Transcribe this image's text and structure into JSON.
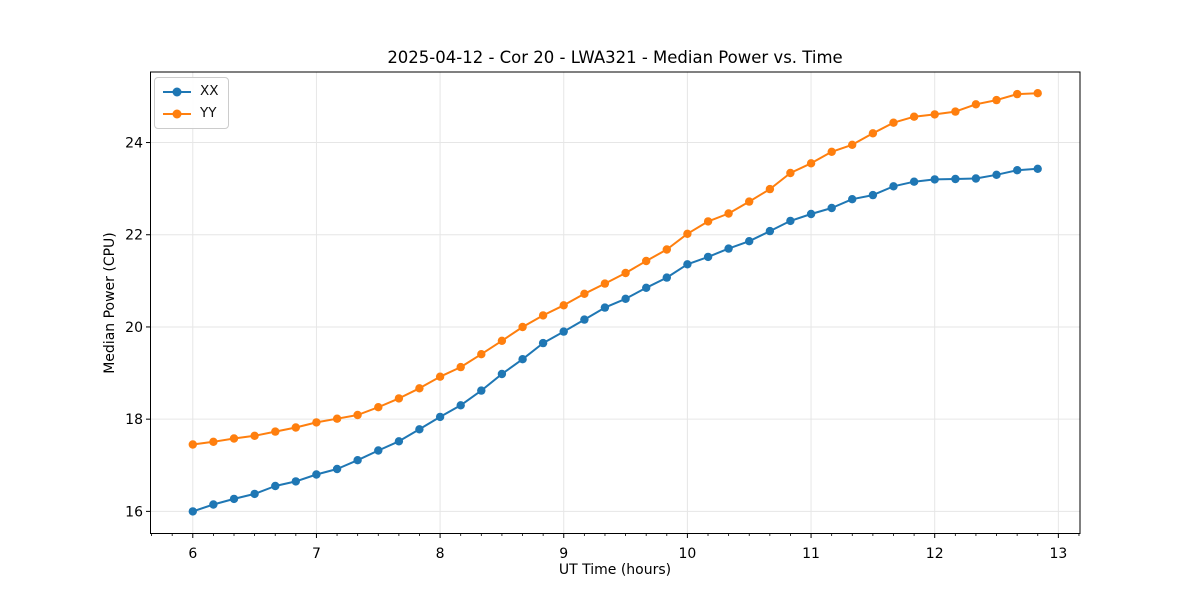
{
  "chart_data": {
    "type": "line",
    "title": "2025-04-12 - Cor 20 - LWA321 - Median Power vs. Time",
    "xlabel": "UT Time (hours)",
    "ylabel": "Median Power (CPU)",
    "xlim": [
      5.658,
      13.175
    ],
    "ylim": [
      15.52,
      25.53
    ],
    "x_ticks": [
      6,
      7,
      8,
      9,
      10,
      11,
      12,
      13
    ],
    "x_tick_labels": [
      "6",
      "7",
      "8",
      "9",
      "10",
      "11",
      "12",
      "13"
    ],
    "y_ticks": [
      16,
      18,
      20,
      22,
      24
    ],
    "y_tick_labels": [
      "16",
      "18",
      "20",
      "22",
      "24"
    ],
    "minor_tick_step_x": 0.16667,
    "grid": true,
    "grid_color": "#e6e6e6",
    "spine_color": "#000000",
    "legend_position": "upper-left",
    "marker": "circle",
    "x": [
      6.0,
      6.167,
      6.333,
      6.5,
      6.667,
      6.833,
      7.0,
      7.167,
      7.333,
      7.5,
      7.667,
      7.833,
      8.0,
      8.167,
      8.333,
      8.5,
      8.667,
      8.833,
      9.0,
      9.167,
      9.333,
      9.5,
      9.667,
      9.833,
      10.0,
      10.167,
      10.333,
      10.5,
      10.667,
      10.833,
      11.0,
      11.167,
      11.333,
      11.5,
      11.667,
      11.833,
      12.0,
      12.167,
      12.333,
      12.5,
      12.667,
      12.833
    ],
    "series": [
      {
        "name": "XX",
        "color": "#1f77b4",
        "values": [
          16.0,
          16.15,
          16.27,
          16.38,
          16.55,
          16.65,
          16.8,
          16.92,
          17.11,
          17.32,
          17.52,
          17.78,
          18.05,
          18.3,
          18.62,
          18.98,
          19.3,
          19.65,
          19.9,
          20.16,
          20.42,
          20.61,
          20.85,
          21.07,
          21.36,
          21.52,
          21.7,
          21.86,
          22.08,
          22.3,
          22.45,
          22.58,
          22.77,
          22.86,
          23.05,
          23.15,
          23.2,
          23.21,
          23.22,
          23.3,
          23.4,
          23.43
        ]
      },
      {
        "name": "YY",
        "color": "#ff7f0e",
        "values": [
          17.45,
          17.51,
          17.58,
          17.64,
          17.73,
          17.82,
          17.93,
          18.01,
          18.09,
          18.26,
          18.45,
          18.67,
          18.92,
          19.13,
          19.41,
          19.7,
          20.0,
          20.25,
          20.47,
          20.72,
          20.94,
          21.17,
          21.43,
          21.68,
          22.02,
          22.29,
          22.46,
          22.72,
          22.99,
          23.34,
          23.55,
          23.8,
          23.95,
          24.2,
          24.43,
          24.56,
          24.61,
          24.67,
          24.83,
          24.92,
          25.05,
          25.07
        ]
      }
    ]
  }
}
